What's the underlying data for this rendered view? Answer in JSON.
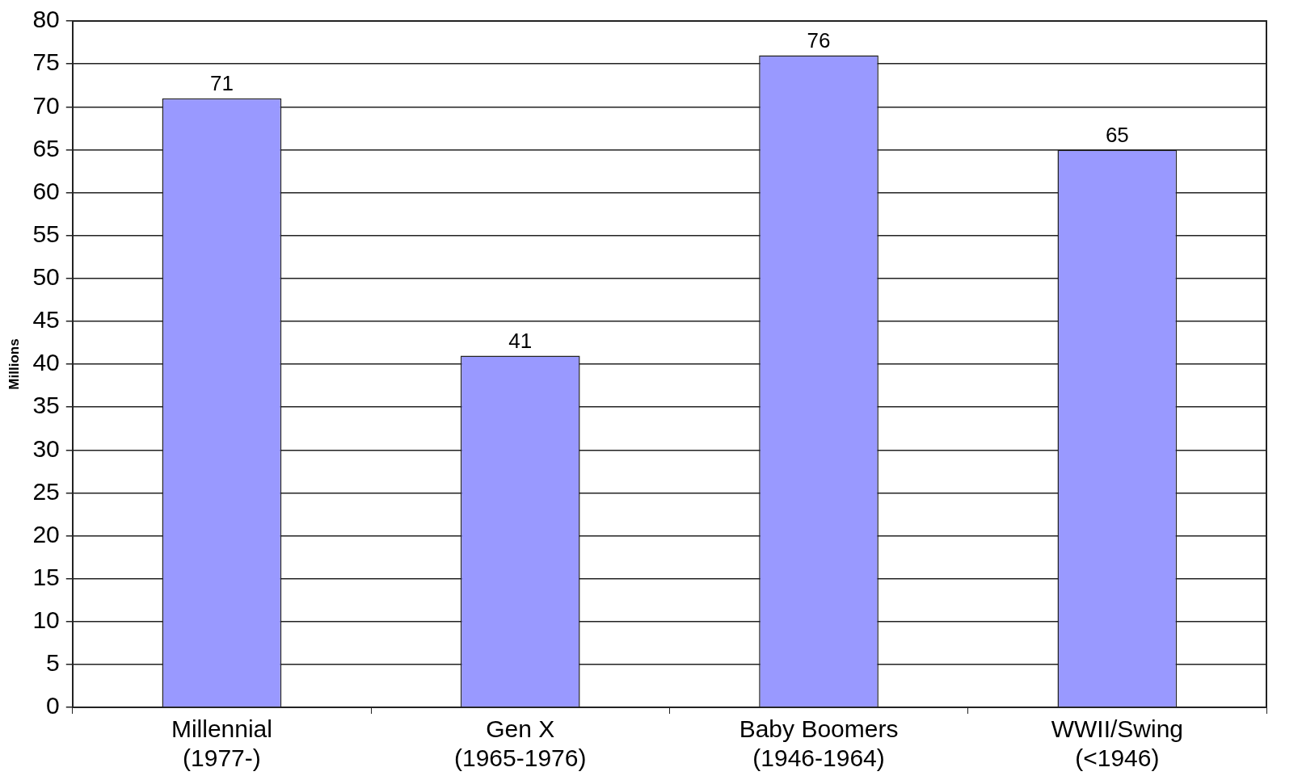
{
  "chart_data": {
    "type": "bar",
    "ylabel": "Millions",
    "categories": [
      "Millennial\n(1977-)",
      "Gen X\n(1965-1976)",
      "Baby Boomers\n(1946-1964)",
      "WWII/Swing\n(<1946)"
    ],
    "values": [
      71,
      41,
      76,
      65
    ],
    "color": "#9999ff",
    "ylim": [
      0,
      80
    ],
    "yticks": [
      0,
      5,
      10,
      15,
      20,
      25,
      30,
      35,
      40,
      45,
      50,
      55,
      60,
      65,
      70,
      75,
      80
    ],
    "grid": "y",
    "data_labels": true
  }
}
